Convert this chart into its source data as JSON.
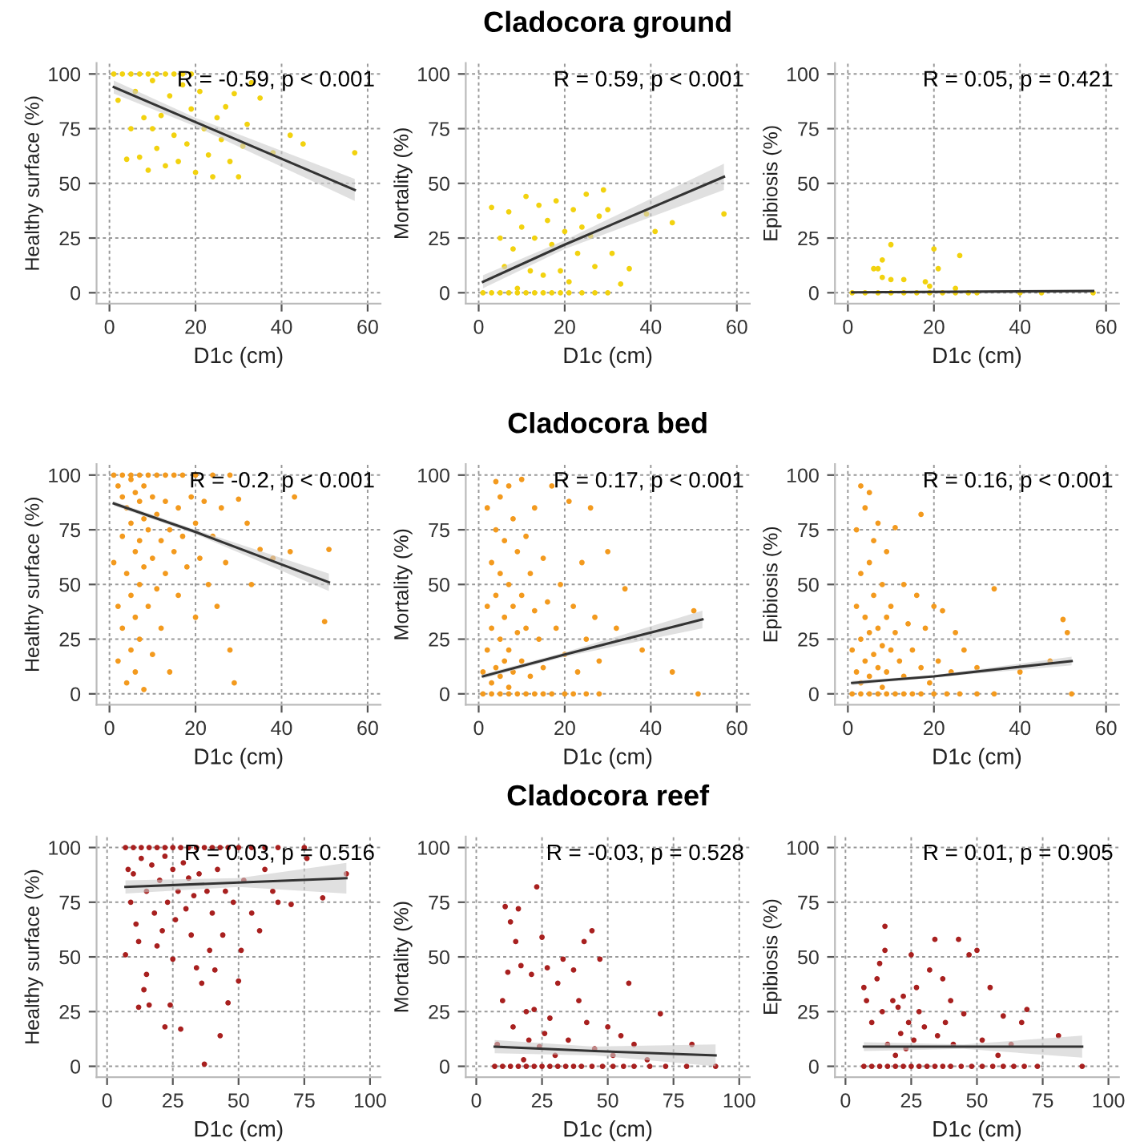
{
  "chart_data": [
    {
      "type": "scatter",
      "xlabel": "D1c (cm)",
      "ylabel": "Healthy surface (%)",
      "xlim": [
        -3,
        63
      ],
      "ylim": [
        -5,
        105
      ],
      "xticks": [
        0,
        20,
        40,
        60
      ],
      "yticks": [
        0,
        25,
        50,
        75,
        100
      ],
      "grid": true,
      "annotations": [
        "R = -0.59, p < 0.001"
      ],
      "series": [
        {
          "marker": "circle",
          "color": "#f2d20f",
          "x": [
            1,
            3,
            5,
            7,
            9,
            11,
            13,
            15,
            17,
            19,
            2,
            4,
            5,
            6,
            7,
            8,
            9,
            10,
            10,
            11,
            12,
            13,
            14,
            15,
            16,
            17,
            18,
            19,
            20,
            21,
            22,
            23,
            24,
            25,
            26,
            27,
            28,
            29,
            30,
            31,
            32,
            33,
            35,
            38,
            42,
            45,
            57
          ],
          "values": [
            100,
            100,
            100,
            100,
            100,
            100,
            100,
            100,
            100,
            100,
            88,
            61,
            75,
            92,
            62,
            80,
            56,
            97,
            75,
            66,
            81,
            58,
            90,
            72,
            60,
            95,
            68,
            84,
            55,
            92,
            75,
            63,
            53,
            80,
            70,
            85,
            60,
            91,
            53,
            67,
            77,
            96,
            89,
            64,
            72,
            68,
            64
          ]
        },
        {
          "type": "line",
          "color": "#333333",
          "x": [
            1,
            20,
            57
          ],
          "values": [
            94,
            78,
            47
          ],
          "lower": [
            91,
            76,
            42
          ],
          "upper": [
            97,
            80,
            52
          ]
        }
      ]
    },
    {
      "type": "scatter",
      "title": "Cladocora ground",
      "xlabel": "D1c (cm)",
      "ylabel": "Mortality (%)",
      "xlim": [
        -3,
        63
      ],
      "ylim": [
        -5,
        105
      ],
      "xticks": [
        0,
        20,
        40,
        60
      ],
      "yticks": [
        0,
        25,
        50,
        75,
        100
      ],
      "grid": true,
      "annotations": [
        "R = 0.59, p < 0.001"
      ],
      "series": [
        {
          "marker": "circle",
          "color": "#f2d20f",
          "x": [
            1,
            3,
            5,
            7,
            9,
            11,
            13,
            15,
            17,
            19,
            21,
            24,
            27,
            30,
            3,
            5,
            6,
            7,
            8,
            9,
            10,
            11,
            12,
            13,
            14,
            15,
            16,
            17,
            18,
            19,
            20,
            21,
            22,
            23,
            24,
            25,
            26,
            27,
            28,
            29,
            30,
            31,
            33,
            35,
            39,
            41,
            45,
            57
          ],
          "values": [
            0,
            0,
            0,
            0,
            0,
            0,
            0,
            0,
            0,
            0,
            0,
            0,
            0,
            0,
            39,
            25,
            12,
            37,
            20,
            2,
            30,
            44,
            10,
            25,
            40,
            8,
            33,
            22,
            42,
            10,
            28,
            5,
            38,
            18,
            30,
            45,
            26,
            12,
            35,
            47,
            38,
            18,
            4,
            11,
            36,
            28,
            32,
            36
          ]
        },
        {
          "type": "line",
          "color": "#333333",
          "x": [
            1,
            20,
            57
          ],
          "values": [
            5,
            22,
            53
          ],
          "lower": [
            2,
            20,
            47
          ],
          "upper": [
            8,
            24,
            59
          ]
        }
      ]
    },
    {
      "type": "scatter",
      "xlabel": "D1c (cm)",
      "ylabel": "Epibiosis (%)",
      "xlim": [
        -3,
        63
      ],
      "ylim": [
        -5,
        105
      ],
      "xticks": [
        0,
        20,
        40,
        60
      ],
      "yticks": [
        0,
        25,
        50,
        75,
        100
      ],
      "grid": true,
      "annotations": [
        "R = 0.05, p = 0.421"
      ],
      "series": [
        {
          "marker": "circle",
          "color": "#f2d20f",
          "x": [
            1,
            4,
            7,
            10,
            13,
            16,
            19,
            22,
            25,
            28,
            30,
            40,
            45,
            57,
            6,
            7,
            8,
            8,
            10,
            10,
            13,
            18,
            19,
            20,
            21,
            25,
            26
          ],
          "values": [
            0,
            0,
            0,
            0,
            0,
            0,
            0,
            0,
            0,
            0,
            0,
            0,
            0,
            0,
            11,
            11,
            7,
            15,
            22,
            6,
            6,
            5,
            3,
            20,
            11,
            2,
            17
          ]
        },
        {
          "type": "line",
          "color": "#333333",
          "x": [
            1,
            57
          ],
          "values": [
            0.2,
            0.8
          ]
        }
      ]
    },
    {
      "type": "scatter",
      "xlabel": "D1c (cm)",
      "ylabel": "Healthy surface (%)",
      "xlim": [
        -3,
        63
      ],
      "ylim": [
        -5,
        105
      ],
      "xticks": [
        0,
        20,
        40,
        60
      ],
      "yticks": [
        0,
        25,
        50,
        75,
        100
      ],
      "grid": true,
      "annotations": [
        "R = -0.2, p < 0.001"
      ],
      "series": [
        {
          "marker": "circle",
          "color": "#f39a1e",
          "x": [
            1,
            3,
            5,
            7,
            9,
            11,
            13,
            15,
            17,
            20,
            24,
            28,
            1,
            2,
            2,
            2,
            3,
            3,
            3,
            4,
            4,
            4,
            5,
            5,
            5,
            5,
            6,
            6,
            6,
            6,
            7,
            7,
            7,
            7,
            8,
            8,
            8,
            8,
            9,
            9,
            10,
            10,
            10,
            11,
            11,
            12,
            12,
            13,
            13,
            14,
            14,
            15,
            16,
            16,
            17,
            18,
            19,
            20,
            20,
            21,
            22,
            23,
            24,
            25,
            26,
            27,
            28,
            29,
            30,
            32,
            33,
            35,
            38,
            42,
            50,
            51,
            43
          ],
          "values": [
            100,
            100,
            100,
            100,
            100,
            100,
            100,
            100,
            100,
            100,
            100,
            100,
            60,
            95,
            40,
            15,
            90,
            72,
            30,
            85,
            55,
            5,
            98,
            78,
            45,
            20,
            92,
            65,
            35,
            10,
            88,
            70,
            50,
            25,
            95,
            80,
            58,
            2,
            75,
            40,
            90,
            62,
            18,
            82,
            48,
            70,
            30,
            88,
            55,
            75,
            10,
            65,
            85,
            45,
            72,
            58,
            90,
            78,
            35,
            62,
            88,
            50,
            72,
            40,
            85,
            60,
            20,
            5,
            89,
            78,
            50,
            66,
            62,
            65,
            33,
            66,
            90
          ]
        },
        {
          "type": "line",
          "color": "#333333",
          "x": [
            1,
            20,
            51
          ],
          "values": [
            87,
            74,
            51
          ],
          "lower": [
            86,
            73,
            47
          ],
          "upper": [
            88,
            75,
            55
          ]
        }
      ]
    },
    {
      "type": "scatter",
      "title": "Cladocora bed",
      "xlabel": "D1c (cm)",
      "ylabel": "Mortality (%)",
      "xlim": [
        -3,
        63
      ],
      "ylim": [
        -5,
        105
      ],
      "xticks": [
        0,
        20,
        40,
        60
      ],
      "yticks": [
        0,
        25,
        50,
        75,
        100
      ],
      "grid": true,
      "annotations": [
        "R = 0.17, p < 0.001"
      ],
      "series": [
        {
          "marker": "circle",
          "color": "#f39a1e",
          "x": [
            1,
            3,
            5,
            7,
            9,
            11,
            13,
            15,
            17,
            20,
            22,
            25,
            28,
            51,
            1,
            2,
            2,
            2,
            3,
            3,
            3,
            4,
            4,
            4,
            4,
            5,
            5,
            5,
            5,
            6,
            6,
            6,
            7,
            7,
            7,
            7,
            8,
            8,
            8,
            9,
            9,
            10,
            10,
            10,
            11,
            11,
            12,
            12,
            13,
            13,
            14,
            15,
            15,
            16,
            17,
            18,
            19,
            20,
            21,
            22,
            23,
            24,
            25,
            26,
            27,
            28,
            30,
            32,
            34,
            38,
            45,
            50
          ],
          "values": [
            0,
            0,
            0,
            0,
            0,
            0,
            0,
            0,
            0,
            0,
            0,
            0,
            0,
            0,
            10,
            85,
            40,
            20,
            60,
            5,
            30,
            97,
            75,
            45,
            12,
            90,
            55,
            25,
            8,
            70,
            35,
            15,
            95,
            50,
            20,
            3,
            80,
            40,
            10,
            65,
            28,
            98,
            45,
            15,
            72,
            30,
            55,
            8,
            85,
            38,
            25,
            62,
            12,
            42,
            95,
            30,
            50,
            18,
            88,
            40,
            10,
            60,
            25,
            85,
            35,
            15,
            65,
            30,
            48,
            20,
            10,
            38
          ]
        },
        {
          "type": "line",
          "color": "#333333",
          "x": [
            1,
            20,
            52
          ],
          "values": [
            8,
            18,
            34
          ],
          "lower": [
            7,
            17,
            30
          ],
          "upper": [
            9,
            19,
            38
          ]
        }
      ]
    },
    {
      "type": "scatter",
      "xlabel": "D1c (cm)",
      "ylabel": "Epibiosis (%)",
      "xlim": [
        -3,
        63
      ],
      "ylim": [
        -5,
        105
      ],
      "xticks": [
        0,
        20,
        40,
        60
      ],
      "yticks": [
        0,
        25,
        50,
        75,
        100
      ],
      "grid": true,
      "annotations": [
        "R = 0.16, p < 0.001"
      ],
      "series": [
        {
          "marker": "circle",
          "color": "#f39a1e",
          "x": [
            1,
            3,
            5,
            7,
            9,
            11,
            13,
            15,
            17,
            20,
            23,
            26,
            30,
            34,
            52,
            1,
            2,
            2,
            2,
            3,
            3,
            3,
            3,
            4,
            4,
            4,
            5,
            5,
            5,
            5,
            6,
            6,
            6,
            7,
            7,
            7,
            8,
            8,
            8,
            9,
            9,
            9,
            10,
            10,
            11,
            11,
            12,
            13,
            13,
            14,
            15,
            16,
            17,
            17,
            18,
            19,
            20,
            21,
            22,
            24,
            25,
            27,
            30,
            34,
            40,
            47,
            50,
            51
          ],
          "values": [
            0,
            0,
            0,
            0,
            0,
            0,
            0,
            0,
            0,
            0,
            0,
            0,
            0,
            0,
            0,
            20,
            75,
            40,
            10,
            95,
            55,
            25,
            5,
            85,
            35,
            15,
            92,
            60,
            28,
            8,
            70,
            45,
            18,
            78,
            30,
            12,
            50,
            22,
            3,
            65,
            35,
            10,
            40,
            20,
            76,
            28,
            15,
            50,
            8,
            32,
            20,
            45,
            82,
            12,
            30,
            5,
            40,
            15,
            38,
            10,
            28,
            20,
            12,
            48,
            10,
            15,
            34,
            28
          ]
        },
        {
          "type": "line",
          "color": "#333333",
          "x": [
            1,
            20,
            52
          ],
          "values": [
            5,
            8,
            15
          ],
          "lower": [
            4,
            7.5,
            13
          ],
          "upper": [
            6,
            8.5,
            17
          ]
        }
      ]
    },
    {
      "type": "scatter",
      "xlabel": "D1c (cm)",
      "ylabel": "Healthy surface (%)",
      "xlim": [
        -4,
        104
      ],
      "ylim": [
        -5,
        105
      ],
      "xticks": [
        0,
        25,
        50,
        75,
        100
      ],
      "yticks": [
        0,
        25,
        50,
        75,
        100
      ],
      "grid": true,
      "annotations": [
        "R = 0.03, p = 0.516"
      ],
      "series": [
        {
          "marker": "circle",
          "color": "#a8201f",
          "x": [
            7,
            10,
            13,
            16,
            19,
            22,
            25,
            28,
            31,
            34,
            37,
            40,
            43,
            46,
            50,
            55,
            60,
            65,
            75,
            7,
            8,
            9,
            10,
            11,
            12,
            12,
            13,
            14,
            15,
            15,
            16,
            17,
            18,
            19,
            20,
            21,
            22,
            22,
            23,
            24,
            25,
            25,
            26,
            27,
            28,
            29,
            30,
            31,
            32,
            33,
            34,
            35,
            36,
            37,
            38,
            39,
            40,
            41,
            42,
            43,
            44,
            45,
            46,
            48,
            50,
            51,
            52,
            55,
            58,
            60,
            63,
            65,
            70,
            76,
            82,
            91
          ],
          "values": [
            100,
            100,
            100,
            100,
            100,
            100,
            100,
            100,
            100,
            100,
            100,
            100,
            100,
            100,
            100,
            100,
            100,
            100,
            100,
            51,
            90,
            75,
            88,
            65,
            57,
            27,
            95,
            35,
            80,
            42,
            28,
            92,
            70,
            55,
            85,
            62,
            96,
            18,
            75,
            28,
            90,
            49,
            67,
            80,
            17,
            93,
            72,
            86,
            60,
            78,
            45,
            88,
            38,
            1,
            80,
            53,
            70,
            44,
            90,
            14,
            60,
            80,
            29,
            75,
            39,
            53,
            85,
            70,
            62,
            90,
            80,
            75,
            74,
            95,
            77,
            88
          ]
        },
        {
          "type": "line",
          "color": "#333333",
          "x": [
            7,
            50,
            91
          ],
          "values": [
            82,
            84,
            86
          ],
          "lower": [
            79,
            82,
            79
          ],
          "upper": [
            85,
            86,
            93
          ]
        }
      ]
    },
    {
      "type": "scatter",
      "title": "Cladocora reef",
      "xlabel": "D1c (cm)",
      "ylabel": "Mortality (%)",
      "xlim": [
        -4,
        104
      ],
      "ylim": [
        -5,
        105
      ],
      "xticks": [
        0,
        25,
        50,
        75,
        100
      ],
      "yticks": [
        0,
        25,
        50,
        75,
        100
      ],
      "grid": true,
      "annotations": [
        "R = -0.03, p = 0.528"
      ],
      "series": [
        {
          "marker": "circle",
          "color": "#a8201f",
          "x": [
            7,
            10,
            13,
            16,
            19,
            22,
            25,
            28,
            31,
            34,
            37,
            40,
            44,
            48,
            52,
            56,
            60,
            66,
            72,
            80,
            91,
            8,
            10,
            11,
            12,
            13,
            14,
            15,
            16,
            17,
            18,
            19,
            20,
            21,
            22,
            23,
            24,
            25,
            26,
            27,
            28,
            30,
            31,
            33,
            35,
            37,
            39,
            41,
            42,
            44,
            45,
            47,
            50,
            52,
            55,
            58,
            60,
            65,
            70,
            82
          ],
          "values": [
            0,
            0,
            0,
            0,
            0,
            0,
            0,
            0,
            0,
            0,
            0,
            0,
            0,
            0,
            0,
            0,
            0,
            0,
            0,
            0,
            0,
            10,
            30,
            73,
            43,
            66,
            18,
            57,
            72,
            46,
            3,
            25,
            12,
            42,
            26,
            82,
            9,
            59,
            15,
            45,
            22,
            5,
            38,
            49,
            12,
            44,
            30,
            57,
            20,
            62,
            8,
            49,
            18,
            5,
            14,
            38,
            10,
            3,
            24,
            10
          ]
        },
        {
          "type": "line",
          "color": "#333333",
          "x": [
            7,
            45,
            91
          ],
          "values": [
            9,
            7,
            5
          ],
          "lower": [
            6,
            5,
            0
          ],
          "upper": [
            12,
            9,
            10
          ]
        }
      ]
    },
    {
      "type": "scatter",
      "xlabel": "D1c (cm)",
      "ylabel": "Epibiosis (%)",
      "xlim": [
        -4,
        104
      ],
      "ylim": [
        -5,
        105
      ],
      "xticks": [
        0,
        25,
        50,
        75,
        100
      ],
      "yticks": [
        0,
        25,
        50,
        75,
        100
      ],
      "grid": true,
      "annotations": [
        "R = 0.01, p = 0.905"
      ],
      "series": [
        {
          "marker": "circle",
          "color": "#a8201f",
          "x": [
            7,
            10,
            13,
            16,
            19,
            22,
            25,
            28,
            31,
            34,
            37,
            40,
            44,
            48,
            52,
            56,
            60,
            64,
            68,
            73,
            7,
            8,
            10,
            12,
            13,
            14,
            15,
            15,
            16,
            18,
            19,
            20,
            21,
            22,
            23,
            24,
            25,
            26,
            27,
            28,
            30,
            32,
            34,
            35,
            37,
            38,
            40,
            41,
            43,
            45,
            47,
            50,
            52,
            55,
            58,
            60,
            63,
            67,
            69,
            81,
            90
          ],
          "values": [
            0,
            0,
            0,
            0,
            0,
            0,
            0,
            0,
            0,
            0,
            0,
            0,
            0,
            0,
            0,
            0,
            0,
            0,
            0,
            0,
            36,
            30,
            20,
            40,
            47,
            25,
            64,
            53,
            10,
            30,
            5,
            27,
            15,
            32,
            8,
            20,
            51,
            12,
            36,
            25,
            18,
            44,
            58,
            14,
            40,
            20,
            30,
            10,
            58,
            24,
            51,
            53,
            12,
            36,
            5,
            23,
            10,
            20,
            26,
            14,
            0
          ]
        },
        {
          "type": "line",
          "color": "#333333",
          "x": [
            7,
            45,
            90
          ],
          "values": [
            9,
            9,
            9
          ],
          "lower": [
            7,
            8,
            4
          ],
          "upper": [
            11,
            10,
            14
          ]
        }
      ]
    }
  ]
}
